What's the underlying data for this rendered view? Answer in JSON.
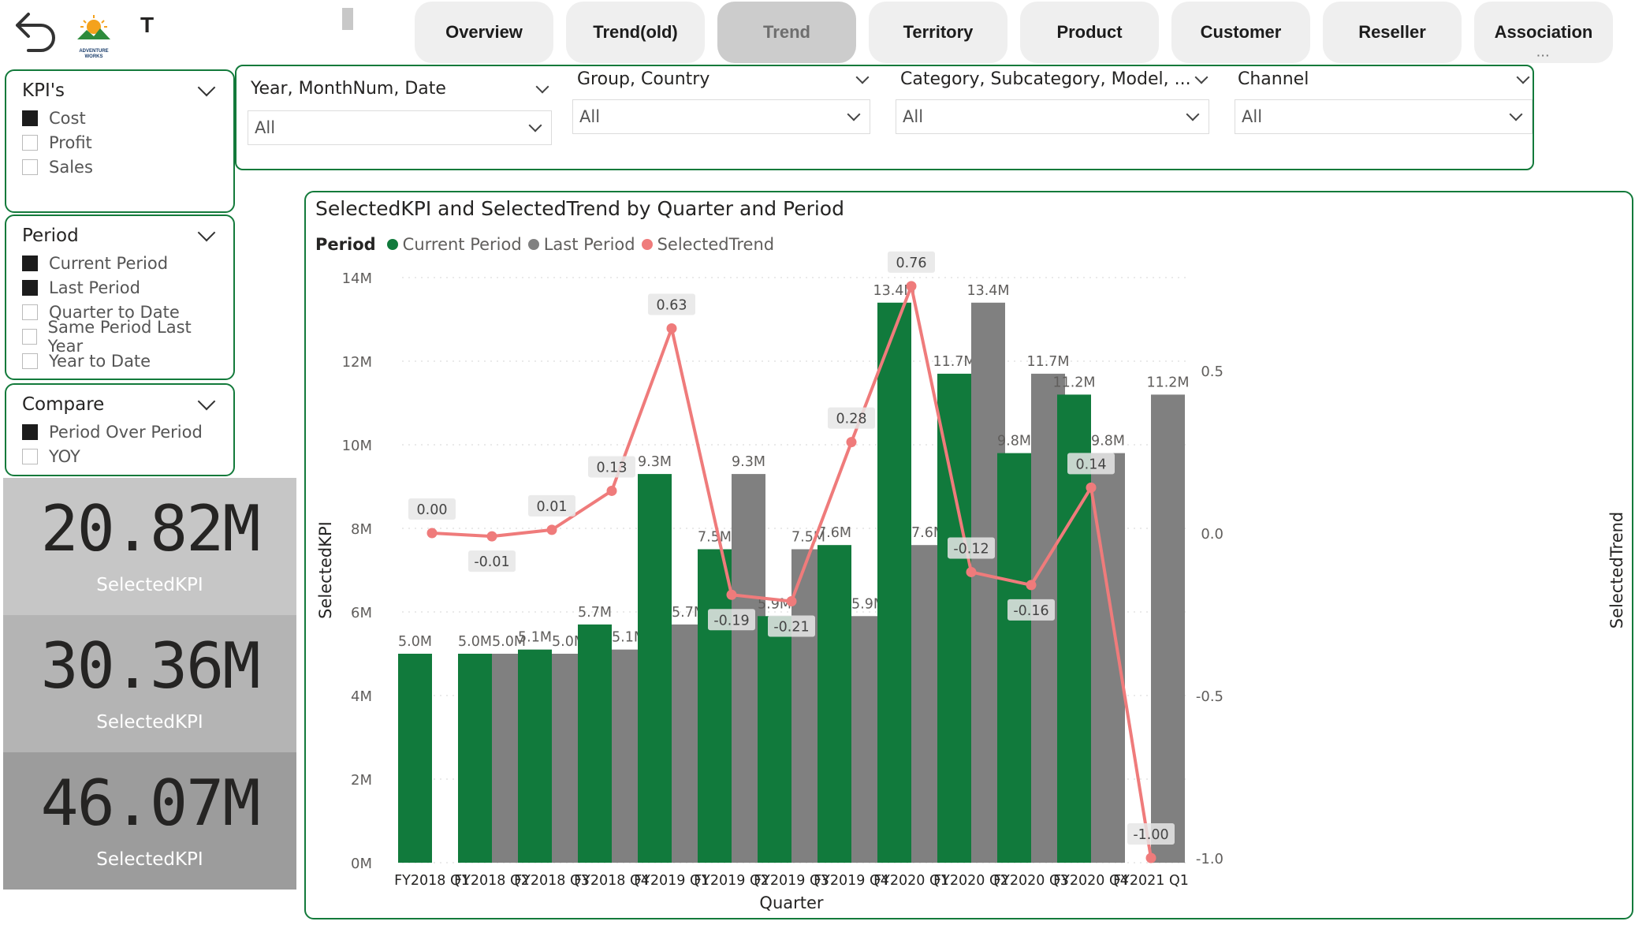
{
  "page": {
    "title": "T"
  },
  "tabs": [
    {
      "label": "Overview",
      "active": false
    },
    {
      "label": "Trend(old)",
      "active": false
    },
    {
      "label": "Trend",
      "active": true
    },
    {
      "label": "Territory",
      "active": false
    },
    {
      "label": "Product",
      "active": false
    },
    {
      "label": "Customer",
      "active": false
    },
    {
      "label": "Reseller",
      "active": false
    },
    {
      "label": "Association",
      "active": false
    }
  ],
  "logo_text": "ADVENTURE WORKS",
  "slicers": {
    "kpis": {
      "title": "KPI's",
      "options": [
        {
          "label": "Cost",
          "checked": true
        },
        {
          "label": "Profit",
          "checked": false
        },
        {
          "label": "Sales",
          "checked": false
        }
      ]
    },
    "period": {
      "title": "Period",
      "options": [
        {
          "label": "Current Period",
          "checked": true
        },
        {
          "label": "Last Period",
          "checked": true
        },
        {
          "label": "Quarter to Date",
          "checked": false
        },
        {
          "label": "Same Period Last Year",
          "checked": false
        },
        {
          "label": "Year to Date",
          "checked": false
        }
      ]
    },
    "compare": {
      "title": "Compare",
      "options": [
        {
          "label": "Period Over Period",
          "checked": true
        },
        {
          "label": "YOY",
          "checked": false
        }
      ]
    }
  },
  "filters": [
    {
      "title": "Year, MonthNum, Date",
      "value": "All"
    },
    {
      "title": "Group, Country",
      "value": "All"
    },
    {
      "title": "Category, Subcategory, Model, ...",
      "value": "All"
    },
    {
      "title": "Channel",
      "value": "All"
    }
  ],
  "cards": [
    {
      "value": "20.82M",
      "label": "SelectedKPI",
      "bg": "#c6c6c6"
    },
    {
      "value": "30.36M",
      "label": "SelectedKPI",
      "bg": "#b4b4b4"
    },
    {
      "value": "46.07M",
      "label": "SelectedKPI",
      "bg": "#9c9c9c"
    }
  ],
  "chart_data": {
    "type": "bar",
    "title": "SelectedKPI and SelectedTrend by Quarter and Period",
    "legend_title": "Period",
    "xlabel": "Quarter",
    "ylabel": "SelectedKPI",
    "y2label": "SelectedTrend",
    "ylim": [
      0,
      14
    ],
    "y2lim": [
      -1.0,
      0.7
    ],
    "yticks": [
      "0M",
      "2M",
      "4M",
      "6M",
      "8M",
      "10M",
      "12M",
      "14M"
    ],
    "y2ticks": [
      "-1.0",
      "-0.5",
      "0.0",
      "0.5"
    ],
    "categories": [
      "FY2018 Q1",
      "FY2018 Q2",
      "FY2018 Q3",
      "FY2018 Q4",
      "FY2019 Q1",
      "FY2019 Q2",
      "FY2019 Q3",
      "FY2019 Q4",
      "FY2020 Q1",
      "FY2020 Q2",
      "FY2020 Q3",
      "FY2020 Q4",
      "FY2021 Q1"
    ],
    "series": [
      {
        "name": "Current Period",
        "kind": "bar",
        "color": "#117a3c",
        "values": [
          5.0,
          5.0,
          5.1,
          5.7,
          9.3,
          7.5,
          5.9,
          7.6,
          13.4,
          11.7,
          9.8,
          11.2,
          null
        ],
        "labels": [
          "5.0M",
          "5.0M",
          "5.1M",
          "5.7M",
          "9.3M",
          "7.5M",
          "5.9M",
          "7.6M",
          "13.4M",
          "11.7M",
          "9.8M",
          "11.2M",
          ""
        ]
      },
      {
        "name": "Last Period",
        "kind": "bar",
        "color": "#808080",
        "values": [
          null,
          5.0,
          5.0,
          5.1,
          5.7,
          9.3,
          7.5,
          5.9,
          7.6,
          13.4,
          11.7,
          9.8,
          11.2
        ],
        "labels": [
          "",
          "5.0M",
          "5.0M",
          "5.1M",
          "5.7M",
          "9.3M",
          "7.5M",
          "5.9M",
          "7.6M",
          "13.4M",
          "11.7M",
          "9.8M",
          "11.2M"
        ]
      },
      {
        "name": "SelectedTrend",
        "kind": "line",
        "color": "#ef7b7b",
        "axis": "y2",
        "values": [
          0.0,
          -0.01,
          0.01,
          0.13,
          0.63,
          -0.19,
          -0.21,
          0.28,
          0.76,
          -0.12,
          -0.16,
          0.14,
          -1.0
        ],
        "labels": [
          "0.00",
          "-0.01",
          "0.01",
          "0.13",
          "0.63",
          "-0.19",
          "-0.21",
          "0.28",
          "0.76",
          "-0.12",
          "-0.16",
          "0.14",
          "-1.00"
        ]
      }
    ],
    "grid": true
  }
}
